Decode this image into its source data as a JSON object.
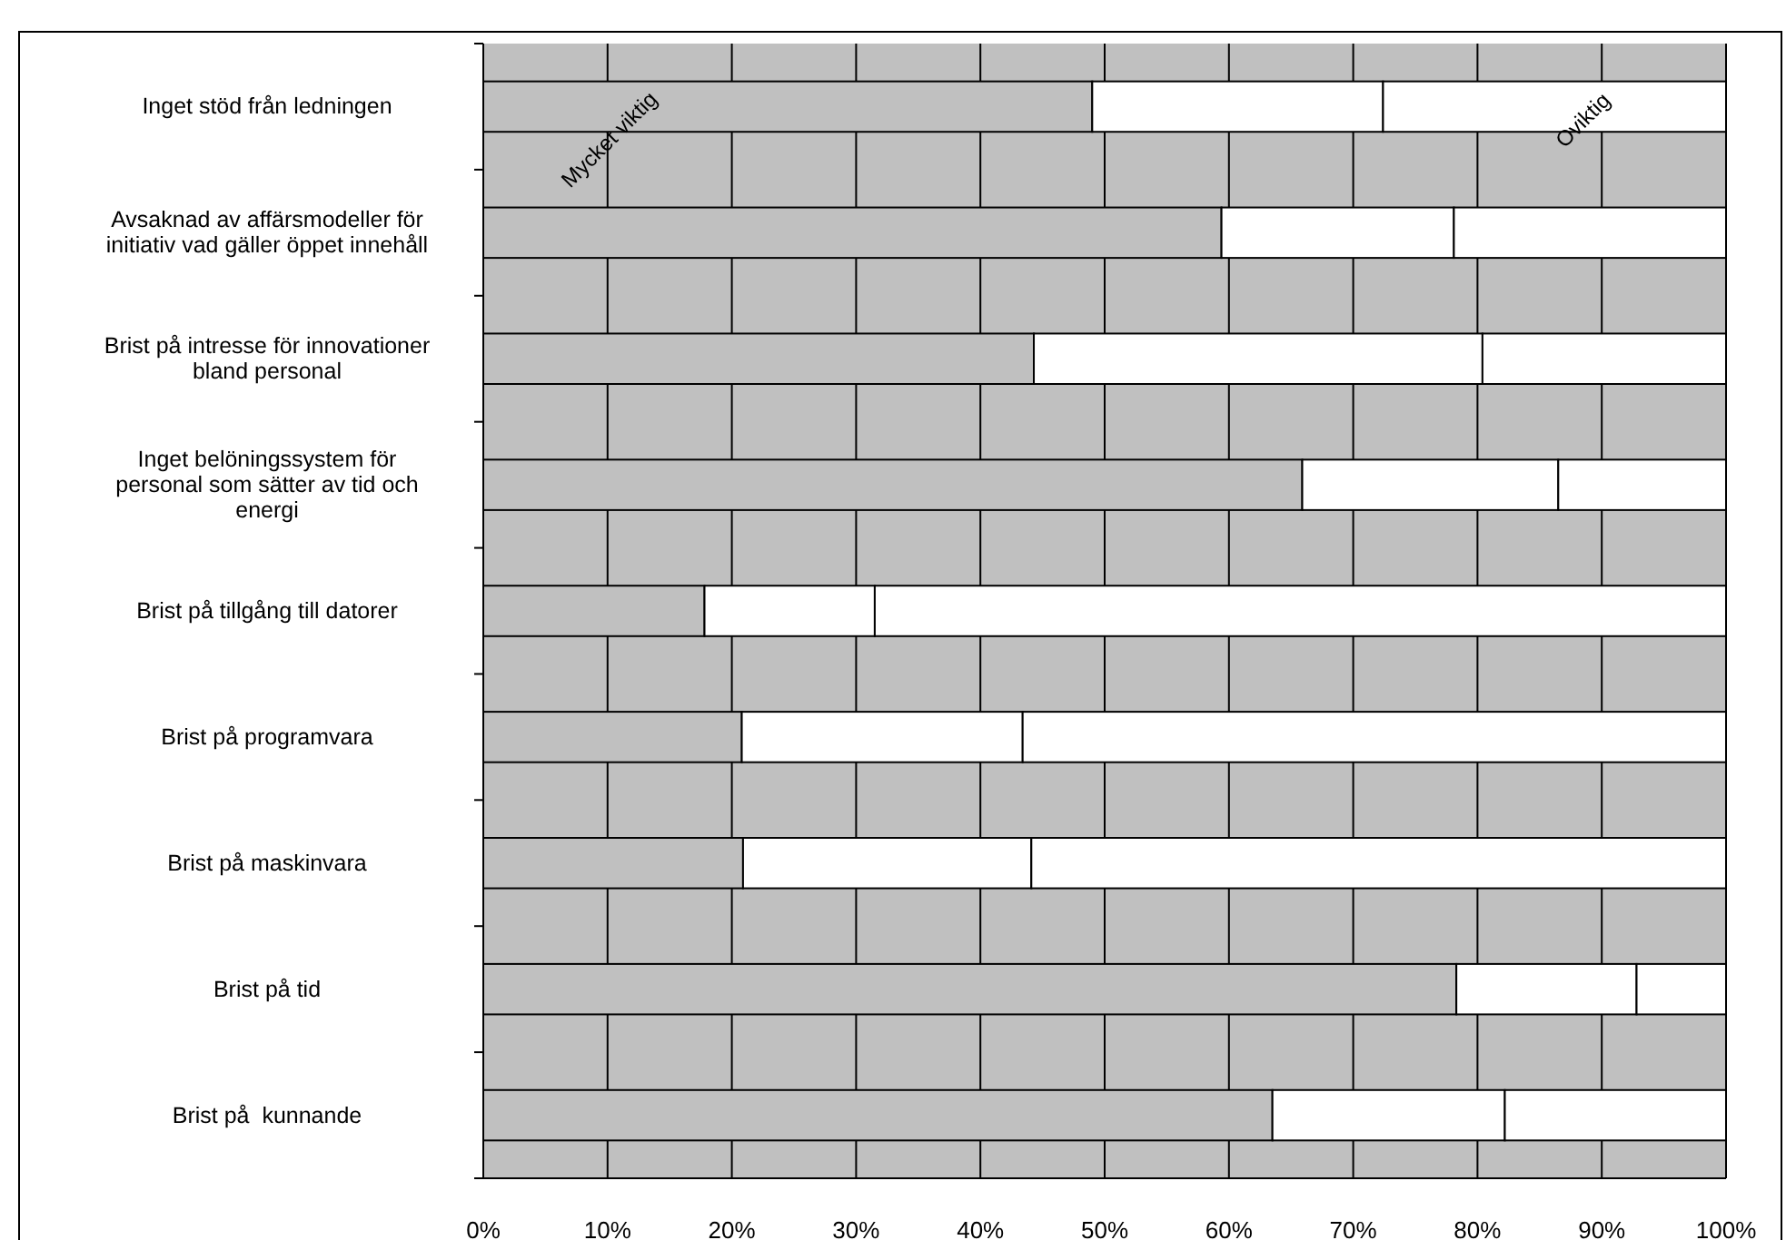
{
  "chart_data": {
    "type": "bar",
    "orientation": "horizontal",
    "stacked": true,
    "categories": [
      "Inget stöd från ledningen",
      "Avsaknad av affärsmodeller för initiativ vad gäller öppet innehåll",
      "Brist på intresse för innovationer bland personal",
      "Inget belöningssystem för personal som sätter av tid och energi",
      "Brist på tillgång till datorer",
      "Brist på programvara",
      "Brist på maskinvara",
      "Brist på tid",
      "Brist på  kunnande"
    ],
    "series": [
      {
        "color": "#c0c0c0",
        "values": [
          49.0,
          59.4,
          44.3,
          65.9,
          17.8,
          20.8,
          20.9,
          78.3,
          63.5
        ]
      },
      {
        "color": "#ffffff",
        "values": [
          23.4,
          18.7,
          36.1,
          20.6,
          13.7,
          22.6,
          23.2,
          14.5,
          18.7
        ]
      },
      {
        "color": "#ffffff",
        "values": [
          27.6,
          21.9,
          19.6,
          13.5,
          68.5,
          56.6,
          55.9,
          7.2,
          17.8
        ]
      }
    ],
    "xlim": [
      0,
      100
    ],
    "xticks": [
      {
        "value": 0,
        "label": "0%"
      },
      {
        "value": 10,
        "label": "10%"
      },
      {
        "value": 20,
        "label": "20%"
      },
      {
        "value": 30,
        "label": "30%"
      },
      {
        "value": 40,
        "label": "40%"
      },
      {
        "value": 50,
        "label": "50%"
      },
      {
        "value": 60,
        "label": "60%"
      },
      {
        "value": 70,
        "label": "70%"
      },
      {
        "value": 80,
        "label": "80%"
      },
      {
        "value": 90,
        "label": "90%"
      },
      {
        "value": 100,
        "label": "100%"
      }
    ],
    "grid": "x",
    "annotations": [
      "Mycket viktig",
      "Oviktig"
    ]
  }
}
